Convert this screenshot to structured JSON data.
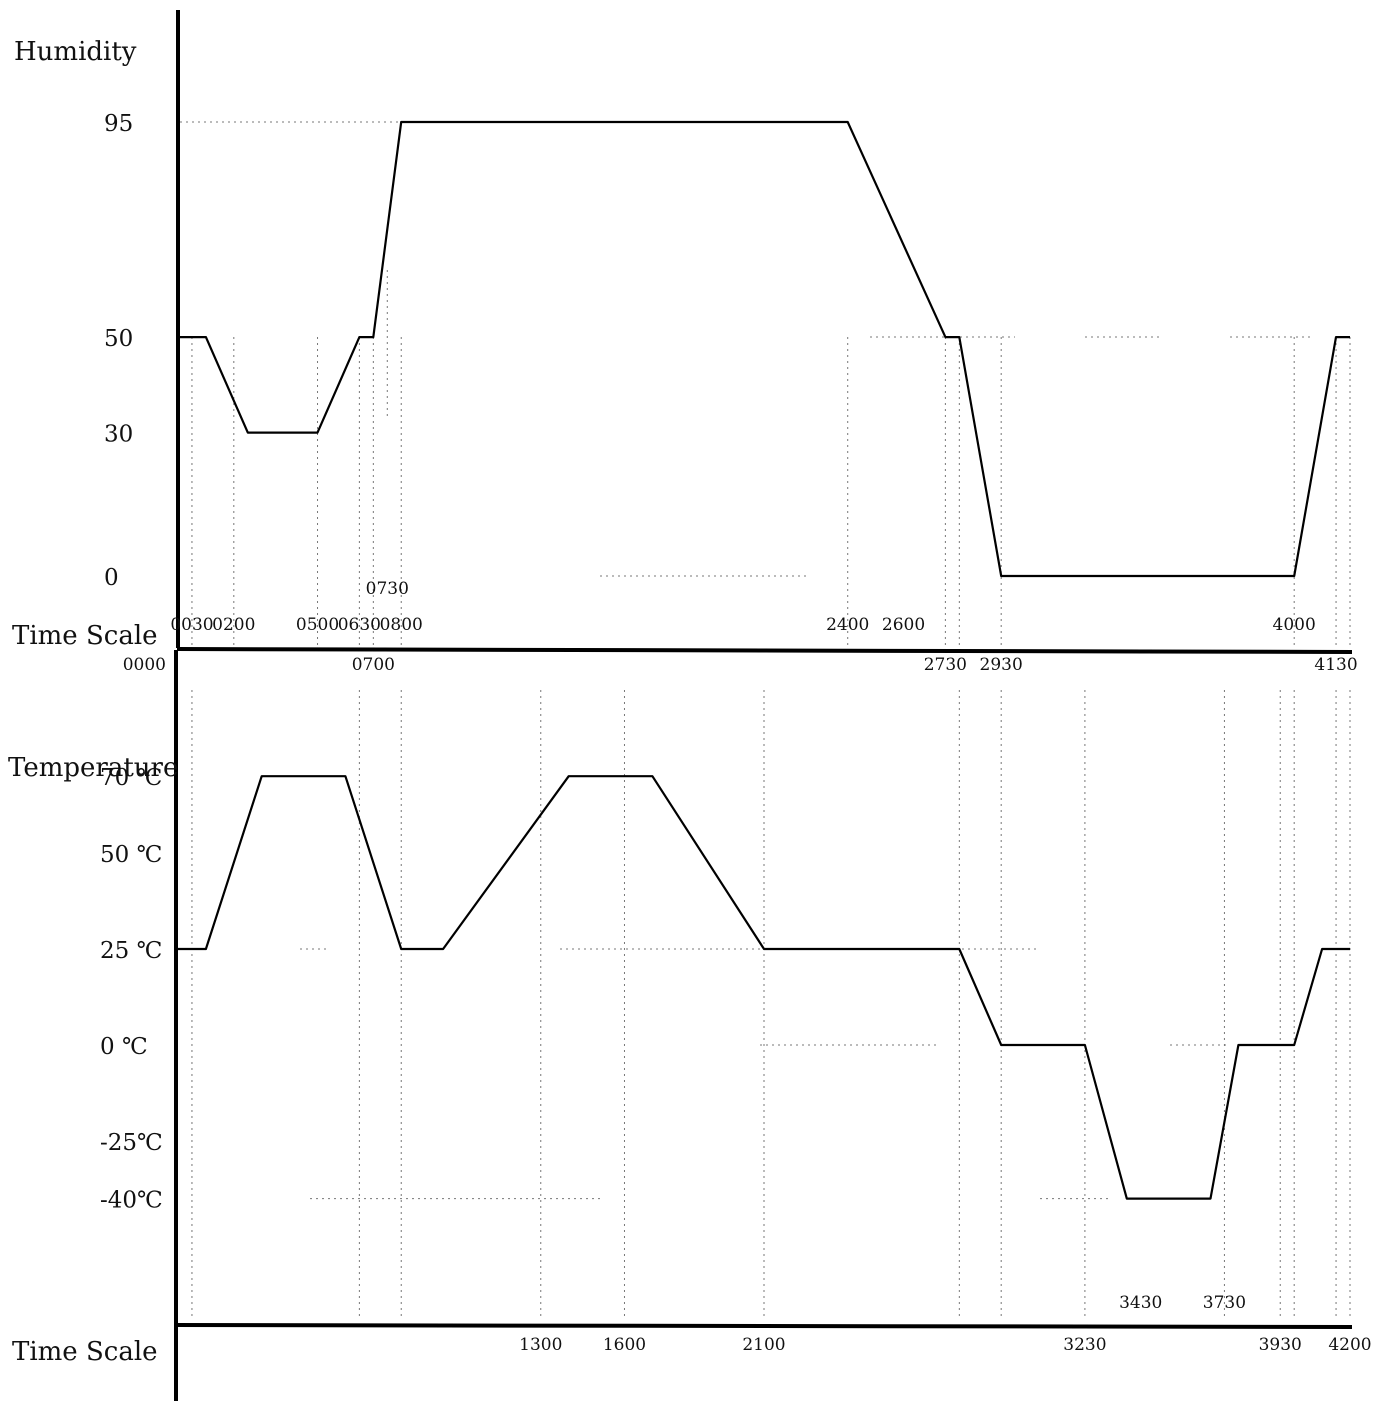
{
  "chart_data": [
    {
      "type": "line",
      "ylabel": "Humidity",
      "xlabel": "Time Scale",
      "yticks": [
        {
          "value": 95,
          "label": "95"
        },
        {
          "value": 50,
          "label": "50"
        },
        {
          "value": 30,
          "label": "30"
        },
        {
          "value": 0,
          "label": "0"
        }
      ],
      "xticks": [
        {
          "x": 0,
          "label": "0000",
          "row": "under"
        },
        {
          "x": 0.5,
          "label": "0030",
          "row": "above"
        },
        {
          "x": 2,
          "label": "0200",
          "row": "above"
        },
        {
          "x": 5,
          "label": "0500",
          "row": "above"
        },
        {
          "x": 6.5,
          "label": "0630",
          "row": "above"
        },
        {
          "x": 7,
          "label": "0700",
          "row": "under"
        },
        {
          "x": 7.5,
          "label": "0730",
          "row": "high"
        },
        {
          "x": 8,
          "label": "0800",
          "row": "above"
        },
        {
          "x": 24,
          "label": "2400",
          "row": "above"
        },
        {
          "x": 26,
          "label": "2600",
          "row": "above"
        },
        {
          "x": 27.5,
          "label": "2730",
          "row": "under"
        },
        {
          "x": 29.5,
          "label": "2930",
          "row": "under"
        },
        {
          "x": 40,
          "label": "4000",
          "row": "above"
        },
        {
          "x": 41.5,
          "label": "4130",
          "row": "under"
        }
      ],
      "series": [
        {
          "x": [
            0,
            1,
            2.5,
            5,
            6.5,
            7,
            8,
            24,
            27.5,
            28,
            29.5,
            40,
            41.5,
            42
          ],
          "y": [
            50,
            50,
            30,
            30,
            50,
            50,
            95,
            95,
            50,
            50,
            0,
            0,
            50,
            50
          ]
        }
      ]
    },
    {
      "type": "line",
      "ylabel": "Temperature",
      "xlabel": "Time Scale",
      "yticks": [
        {
          "value": 70,
          "label": "70 ℃"
        },
        {
          "value": 50,
          "label": "50 ℃"
        },
        {
          "value": 25,
          "label": "25 ℃"
        },
        {
          "value": 0,
          "label": "0  ℃"
        },
        {
          "value": -25,
          "label": "-25℃"
        },
        {
          "value": -40,
          "label": "-40℃"
        }
      ],
      "xticks": [
        {
          "x": 13,
          "label": "1300",
          "row": "below"
        },
        {
          "x": 16,
          "label": "1600",
          "row": "below"
        },
        {
          "x": 21,
          "label": "2100",
          "row": "below"
        },
        {
          "x": 32.5,
          "label": "3230",
          "row": "below"
        },
        {
          "x": 34.5,
          "label": "3430",
          "row": "above"
        },
        {
          "x": 37.5,
          "label": "3730",
          "row": "above"
        },
        {
          "x": 39.5,
          "label": "3930",
          "row": "below"
        },
        {
          "x": 42,
          "label": "4200",
          "row": "below"
        }
      ],
      "series": [
        {
          "x": [
            0,
            1,
            3,
            6,
            8,
            9.5,
            14,
            17,
            21,
            28,
            29.5,
            32.5,
            34,
            37,
            38,
            40,
            41,
            42
          ],
          "y": [
            25,
            25,
            70,
            70,
            25,
            25,
            70,
            70,
            25,
            25,
            0,
            0,
            -40,
            -40,
            0,
            0,
            25,
            25
          ]
        }
      ]
    }
  ]
}
